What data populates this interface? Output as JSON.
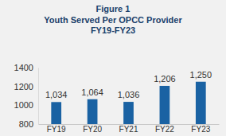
{
  "chart_data": {
    "type": "bar",
    "title": "Figure 1",
    "subtitle": [
      "Youth Served Per OPCC Provider",
      "FY19-FY23"
    ],
    "categories": [
      "FY19",
      "FY20",
      "FY21",
      "FY22",
      "FY23"
    ],
    "values": [
      1034,
      1064,
      1036,
      1206,
      1250
    ],
    "value_labels": [
      "1,034",
      "1,064",
      "1,036",
      "1,206",
      "1,250"
    ],
    "color": "#1a62a3",
    "ylim": [
      800,
      1400
    ],
    "yticks": [
      800,
      1000,
      1200,
      1400
    ],
    "grid": false,
    "data_labels": true
  }
}
